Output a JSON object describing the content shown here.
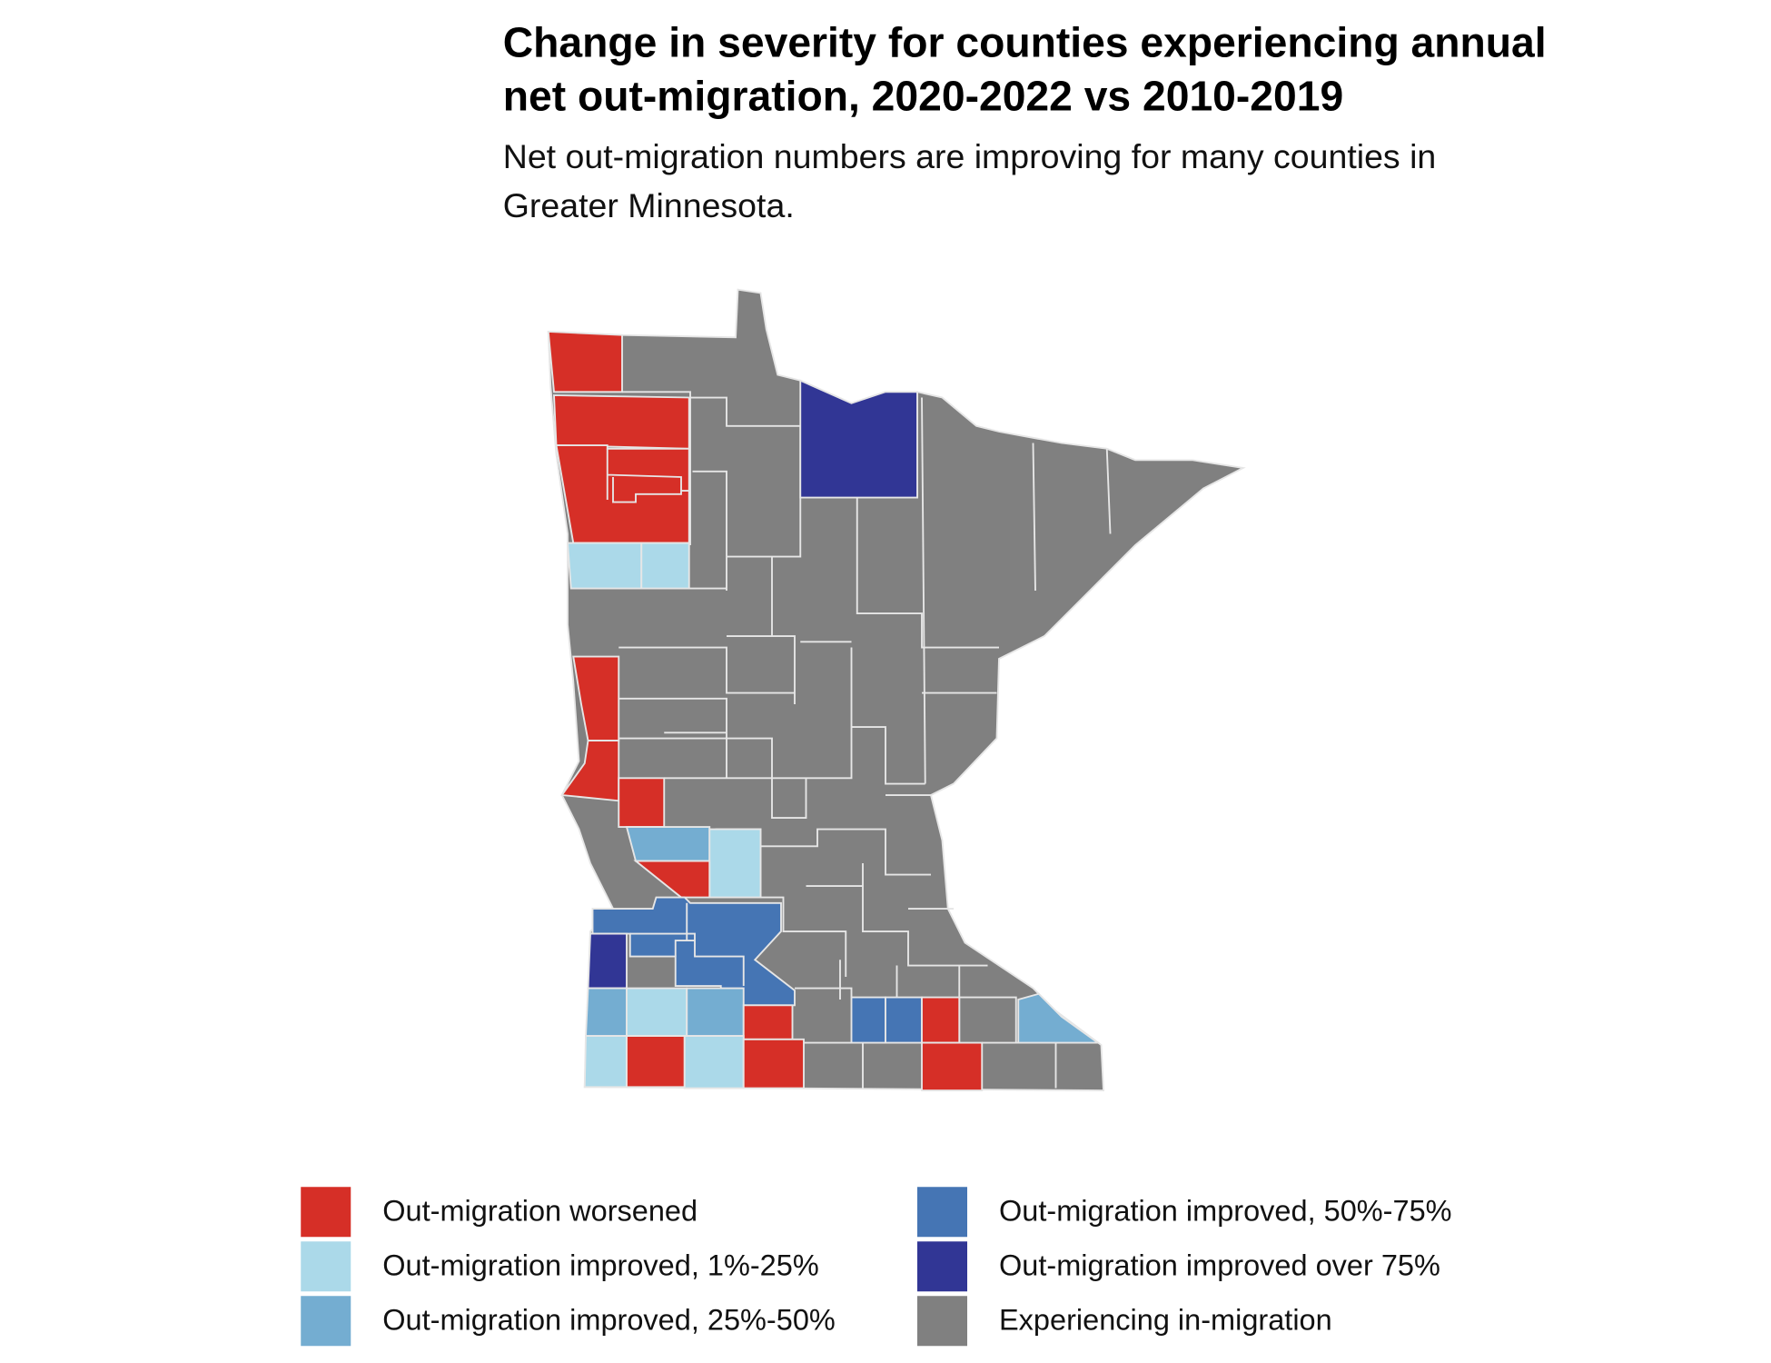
{
  "title": [
    "Change in severity for counties experiencing annual",
    "net out-migration, 2020-2022 vs 2010-2019"
  ],
  "subtitle": [
    "Net out-migration numbers are improving for many counties in",
    "Greater Minnesota."
  ],
  "legend": [
    {
      "label": "Out-migration worsened",
      "color": "#d62f27"
    },
    {
      "label": "Out-migration improved, 1%-25%",
      "color": "#abd9e9"
    },
    {
      "label": "Out-migration improved, 25%-50%",
      "color": "#74add1"
    },
    {
      "label": "Out-migration improved, 50%-75%",
      "color": "#4575b4"
    },
    {
      "label": "Out-migration improved over 75%",
      "color": "#313695"
    },
    {
      "label": "Experiencing in-migration",
      "color": "#808080"
    }
  ]
}
